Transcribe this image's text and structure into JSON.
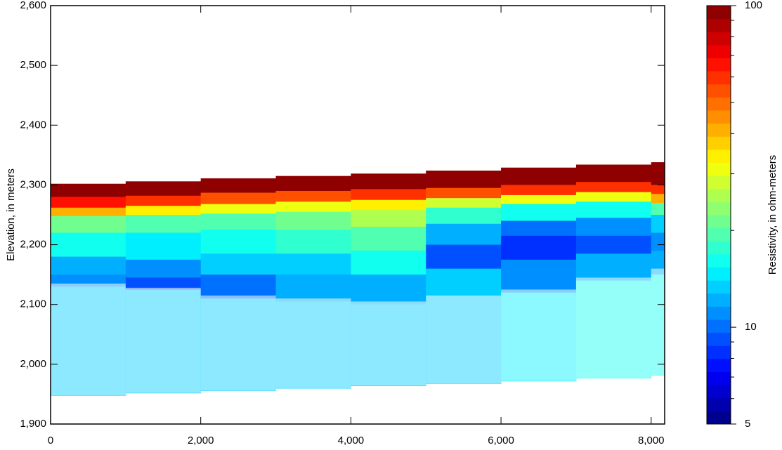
{
  "chart_data": {
    "type": "section",
    "ylabel": "Elevation, in meters",
    "xlim": [
      0,
      8180
    ],
    "ylim": [
      1900,
      2600
    ],
    "xticks": [
      0,
      {
        "value": 2000,
        "label": "2,000"
      },
      {
        "value": 4000,
        "label": "4,000"
      },
      {
        "value": 6000,
        "label": "6,000"
      },
      {
        "value": 8000,
        "label": "8,000"
      }
    ],
    "yticks": [
      {
        "value": 1900,
        "label": "1,900"
      },
      {
        "value": 2000,
        "label": "2,000"
      },
      {
        "value": 2100,
        "label": "2,100"
      },
      {
        "value": 2200,
        "label": "2,200"
      },
      {
        "value": 2300,
        "label": "2,300"
      },
      {
        "value": 2400,
        "label": "2,400"
      },
      {
        "value": 2500,
        "label": "2,500"
      },
      {
        "value": 2600,
        "label": "2,600"
      }
    ],
    "x_edges": [
      0,
      1000,
      2000,
      3000,
      4000,
      5000,
      6000,
      7000,
      8000,
      8180
    ],
    "columns": [
      {
        "top": 2302,
        "bottoms": [
          2280,
          2262,
          2248,
          2220,
          2180,
          2150,
          2130,
          1948
        ],
        "values": [
          100,
          65,
          40,
          22,
          16,
          12,
          11,
          13
        ],
        "doi": 2135
      },
      {
        "top": 2306,
        "bottoms": [
          2282,
          2265,
          2250,
          2220,
          2175,
          2145,
          2125,
          1952
        ],
        "values": [
          100,
          60,
          35,
          20,
          15,
          11,
          9,
          13
        ],
        "doi": 2128
      },
      {
        "top": 2311,
        "bottoms": [
          2287,
          2268,
          2252,
          2225,
          2185,
          2150,
          2110,
          1956
        ],
        "values": [
          100,
          55,
          30,
          20,
          16,
          13,
          10,
          14
        ],
        "doi": 2115
      },
      {
        "top": 2315,
        "bottoms": [
          2290,
          2272,
          2255,
          2225,
          2185,
          2150,
          2105,
          1960
        ],
        "values": [
          100,
          55,
          30,
          22,
          17,
          14,
          12,
          14
        ],
        "doi": 2110
      },
      {
        "top": 2319,
        "bottoms": [
          2293,
          2275,
          2258,
          2230,
          2190,
          2150,
          2100,
          1964
        ],
        "values": [
          100,
          60,
          35,
          25,
          20,
          16,
          12,
          14
        ],
        "doi": 2105
      },
      {
        "top": 2324,
        "bottoms": [
          2295,
          2278,
          2262,
          2235,
          2200,
          2160,
          2110,
          1968
        ],
        "values": [
          100,
          55,
          28,
          18,
          12,
          9,
          13,
          14
        ],
        "doi": 2115
      },
      {
        "top": 2329,
        "bottoms": [
          2300,
          2283,
          2268,
          2240,
          2215,
          2175,
          2120,
          1972
        ],
        "values": [
          100,
          60,
          30,
          16,
          10,
          8,
          11,
          15
        ],
        "doi": 2125
      },
      {
        "top": 2334,
        "bottoms": [
          2305,
          2288,
          2272,
          2245,
          2215,
          2185,
          2140,
          1977
        ],
        "values": [
          100,
          60,
          30,
          16,
          11,
          9,
          12,
          16
        ],
        "doi": 2145
      },
      {
        "top": 2338,
        "bottoms": [
          2300,
          2285,
          2270,
          2250,
          2220,
          2190,
          2150,
          1982
        ],
        "values": [
          100,
          60,
          40,
          20,
          14,
          11,
          12,
          16
        ],
        "doi": 2160
      }
    ],
    "colorbar": {
      "label": "Resistivity, in ohm-meters",
      "lim": [
        5,
        100
      ],
      "log": true,
      "colormap": "jet",
      "levels": 32,
      "ticks": [
        5,
        10,
        100
      ],
      "minor_ticks": [
        6,
        7,
        8,
        9,
        20,
        30,
        40,
        50,
        60,
        70,
        80,
        90
      ]
    }
  }
}
